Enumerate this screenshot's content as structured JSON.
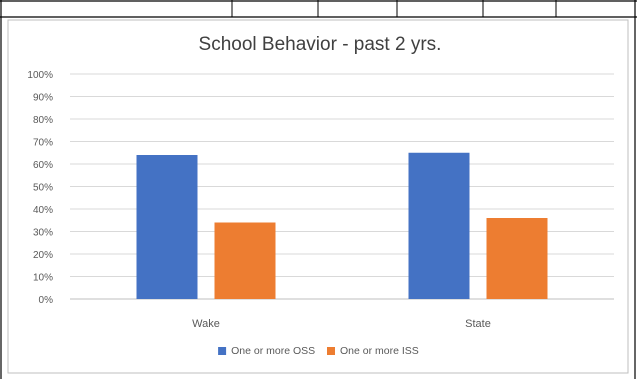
{
  "chart_data": {
    "type": "bar",
    "title": "School Behavior - past 2 yrs.",
    "xlabel": "",
    "ylabel": "",
    "categories": [
      "Wake",
      "State"
    ],
    "series": [
      {
        "name": "One or more OSS",
        "values": [
          64,
          65
        ],
        "color": "#4472C4"
      },
      {
        "name": "One or more ISS",
        "values": [
          34,
          36
        ],
        "color": "#ED7D31"
      }
    ],
    "ylim": [
      0,
      100
    ],
    "y_ticks": [
      "0%",
      "10%",
      "20%",
      "30%",
      "40%",
      "50%",
      "60%",
      "70%",
      "80%",
      "90%",
      "100%"
    ],
    "value_unit": "percent",
    "grid": true,
    "legend_position": "bottom"
  },
  "colors": {
    "gridline": "#d9d9d9",
    "text": "#595959",
    "title": "#404040",
    "frame": "#000000"
  }
}
